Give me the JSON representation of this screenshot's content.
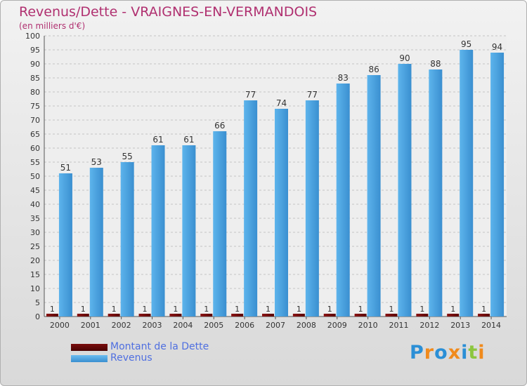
{
  "header": {
    "title": "Revenus/Dette - VRAIGNES-EN-VERMANDOIS",
    "subtitle": "(en milliers d'€)"
  },
  "logo": {
    "text": "Proxiti"
  },
  "colors": {
    "dette": "#6b0a0a",
    "revenus": "#4aa3e0",
    "title": "#b03070",
    "legend_text": "#4f6fe0"
  },
  "chart_data": {
    "type": "bar",
    "title": "Revenus/Dette - VRAIGNES-EN-VERMANDOIS",
    "ylabel": "(en milliers d'€)",
    "ylim": [
      0,
      100
    ],
    "ytick_step": 5,
    "grid": true,
    "legend_position": "bottom-left",
    "categories": [
      "2000",
      "2001",
      "2002",
      "2003",
      "2004",
      "2005",
      "2006",
      "2007",
      "2008",
      "2009",
      "2010",
      "2011",
      "2012",
      "2013",
      "2014"
    ],
    "series": [
      {
        "name": "Montant de la Dette",
        "color": "#6b0a0a",
        "values": [
          1,
          1,
          1,
          1,
          1,
          1,
          1,
          1,
          1,
          1,
          1,
          1,
          1,
          1,
          1
        ]
      },
      {
        "name": "Revenus",
        "color": "#4aa3e0",
        "values": [
          51,
          53,
          55,
          61,
          61,
          66,
          77,
          74,
          77,
          83,
          86,
          90,
          88,
          95,
          94
        ]
      }
    ]
  }
}
